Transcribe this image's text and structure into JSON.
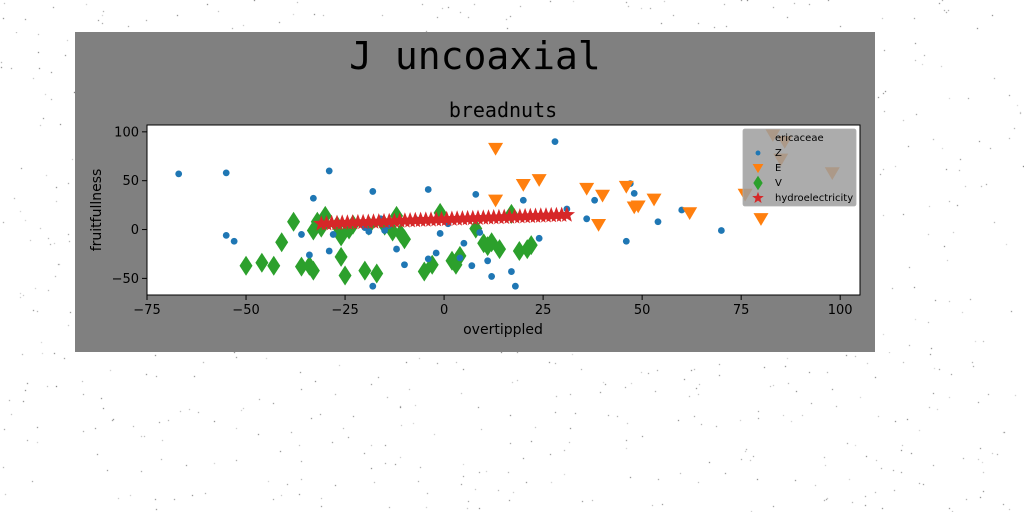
{
  "figure": {
    "suptitle": "J uncoaxial",
    "background": "#808080",
    "page_background": "#ffffff"
  },
  "chart_data": {
    "type": "scatter",
    "title": "breadnuts",
    "xlabel": "overtippled",
    "ylabel": "fruitfullness",
    "xlim": [
      -75,
      105
    ],
    "ylim": [
      -67,
      107
    ],
    "xticks": [
      -75,
      -50,
      -25,
      0,
      25,
      50,
      75,
      100
    ],
    "yticks": [
      -50,
      0,
      50,
      100
    ],
    "grid": false,
    "legend": {
      "title": "ericaceae",
      "position": "top-right",
      "background": "#9e9e9e"
    },
    "series": [
      {
        "name": "Z",
        "marker": "circle",
        "color": "#1f77b4",
        "points": [
          [
            -67,
            57
          ],
          [
            -55,
            58
          ],
          [
            -55,
            -6
          ],
          [
            -53,
            -12
          ],
          [
            -36,
            -5
          ],
          [
            -34,
            -26
          ],
          [
            -33,
            32
          ],
          [
            -29,
            -22
          ],
          [
            -29,
            60
          ],
          [
            -28,
            -5
          ],
          [
            -20,
            2
          ],
          [
            -19,
            -2
          ],
          [
            -18,
            -58
          ],
          [
            -18,
            39
          ],
          [
            -16,
            11
          ],
          [
            -15,
            -1
          ],
          [
            -14,
            4
          ],
          [
            -12,
            -20
          ],
          [
            -10,
            -36
          ],
          [
            -7,
            10
          ],
          [
            -4,
            41
          ],
          [
            -4,
            -30
          ],
          [
            -2,
            -24
          ],
          [
            -1,
            -4
          ],
          [
            1,
            6
          ],
          [
            4,
            -29
          ],
          [
            5,
            -14
          ],
          [
            7,
            -37
          ],
          [
            8,
            36
          ],
          [
            9,
            -3
          ],
          [
            11,
            -32
          ],
          [
            12,
            -48
          ],
          [
            13,
            30
          ],
          [
            17,
            -43
          ],
          [
            18,
            -58
          ],
          [
            20,
            30
          ],
          [
            24,
            -9
          ],
          [
            28,
            90
          ],
          [
            31,
            21
          ],
          [
            36,
            11
          ],
          [
            38,
            30
          ],
          [
            46,
            -12
          ],
          [
            47,
            47
          ],
          [
            48,
            37
          ],
          [
            54,
            8
          ],
          [
            60,
            20
          ],
          [
            70,
            -1
          ]
        ]
      },
      {
        "name": "E",
        "marker": "triangle-down",
        "color": "#ff7f0e",
        "points": [
          [
            13,
            30
          ],
          [
            13,
            83
          ],
          [
            20,
            46
          ],
          [
            24,
            51
          ],
          [
            36,
            42
          ],
          [
            39,
            5
          ],
          [
            40,
            35
          ],
          [
            46,
            44
          ],
          [
            48,
            23
          ],
          [
            49,
            24
          ],
          [
            53,
            31
          ],
          [
            62,
            17
          ],
          [
            76,
            36
          ],
          [
            80,
            11
          ],
          [
            83,
            97
          ],
          [
            85,
            72
          ],
          [
            86,
            90
          ],
          [
            98,
            58
          ]
        ]
      },
      {
        "name": "V",
        "marker": "diamond",
        "color": "#2ca02c",
        "points": [
          [
            -50,
            -37
          ],
          [
            -46,
            -34
          ],
          [
            -43,
            -37
          ],
          [
            -41,
            -13
          ],
          [
            -38,
            8
          ],
          [
            -36,
            -38
          ],
          [
            -34,
            -37
          ],
          [
            -33,
            -42
          ],
          [
            -33,
            -1
          ],
          [
            -32,
            8
          ],
          [
            -31,
            2
          ],
          [
            -30,
            14
          ],
          [
            -27,
            4
          ],
          [
            -26,
            -7
          ],
          [
            -26,
            -28
          ],
          [
            -25,
            -47
          ],
          [
            -24,
            0
          ],
          [
            -23,
            5
          ],
          [
            -20,
            -42
          ],
          [
            -19,
            4
          ],
          [
            -17,
            -45
          ],
          [
            -15,
            4
          ],
          [
            -13,
            -2
          ],
          [
            -12,
            14
          ],
          [
            -11,
            -4
          ],
          [
            -10,
            -10
          ],
          [
            -5,
            -43
          ],
          [
            -3,
            -36
          ],
          [
            -1,
            17
          ],
          [
            2,
            -32
          ],
          [
            3,
            -36
          ],
          [
            4,
            -27
          ],
          [
            8,
            1
          ],
          [
            10,
            -14
          ],
          [
            11,
            -17
          ],
          [
            12,
            -13
          ],
          [
            14,
            -20
          ],
          [
            17,
            16
          ],
          [
            19,
            -22
          ],
          [
            21,
            -20
          ],
          [
            22,
            -16
          ]
        ]
      },
      {
        "name": "hydroelectricity",
        "marker": "star",
        "color": "#d62728",
        "x_range": [
          -31,
          31
        ],
        "y_range": [
          6,
          15
        ],
        "count": 48
      }
    ]
  }
}
